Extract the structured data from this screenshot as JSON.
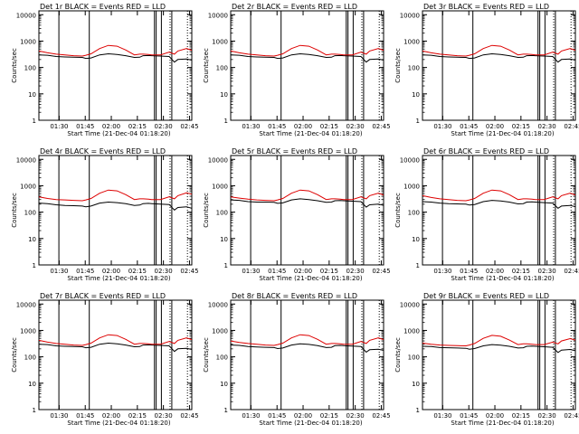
{
  "colors": {
    "events": "#000000",
    "lld": "#dd0000",
    "axes": "#000000",
    "background": "#ffffff"
  },
  "chart_data": [
    {
      "type": "line",
      "title": "Det 1r BLACK = Events RED = LLD",
      "ylabel": "Counts/sec",
      "xlabel": "Start Time (21-Dec-04 01:18:20)",
      "xticklabels": [
        "01:30",
        "01:45",
        "02:00",
        "02:15",
        "02:30",
        "02:45"
      ],
      "yticklabels": [
        "1",
        "10",
        "100",
        "1000",
        "10000"
      ],
      "ylim": [
        1,
        14000
      ],
      "log_y": true,
      "xlim_minutes": [
        0,
        88
      ],
      "x_minutes": [
        0,
        5,
        10,
        15,
        20,
        25,
        27,
        30,
        35,
        40,
        45,
        50,
        55,
        58,
        60,
        63,
        65,
        70,
        75,
        78,
        80,
        85,
        88
      ],
      "series": [
        {
          "name": "Events",
          "values": [
            300,
            290,
            260,
            250,
            245,
            240,
            220,
            230,
            300,
            330,
            310,
            280,
            240,
            245,
            280,
            285,
            280,
            270,
            260,
            160,
            200,
            210,
            190
          ]
        },
        {
          "name": "LLD",
          "values": [
            420,
            360,
            320,
            300,
            280,
            270,
            290,
            330,
            520,
            690,
            640,
            460,
            300,
            320,
            320,
            310,
            300,
            300,
            380,
            320,
            420,
            520,
            450
          ]
        }
      ],
      "vlines_solid": [
        11.5,
        29,
        66.5,
        67.5,
        70.5,
        76.5
      ],
      "vlines_dotted": [
        75.5,
        85.5
      ]
    },
    {
      "type": "line",
      "title": "Det 2r BLACK = Events RED = LLD",
      "ylabel": "Counts/sec",
      "xlabel": "Start Time (21-Dec-04 01:18:20)",
      "xticklabels": [
        "01:30",
        "01:45",
        "02:00",
        "02:15",
        "02:30",
        "02:45"
      ],
      "yticklabels": [
        "1",
        "10",
        "100",
        "1000",
        "10000"
      ],
      "ylim": [
        1,
        14000
      ],
      "log_y": true,
      "xlim_minutes": [
        0,
        88
      ],
      "x_minutes": [
        0,
        5,
        10,
        15,
        20,
        25,
        27,
        30,
        35,
        40,
        45,
        50,
        55,
        58,
        60,
        63,
        65,
        70,
        75,
        78,
        80,
        85,
        88
      ],
      "series": [
        {
          "name": "Events",
          "values": [
            300,
            290,
            260,
            250,
            245,
            240,
            220,
            230,
            300,
            330,
            310,
            280,
            240,
            245,
            280,
            285,
            280,
            270,
            260,
            160,
            200,
            210,
            190
          ]
        },
        {
          "name": "LLD",
          "values": [
            420,
            360,
            320,
            300,
            280,
            270,
            290,
            330,
            520,
            690,
            640,
            460,
            300,
            320,
            320,
            310,
            300,
            300,
            380,
            320,
            420,
            520,
            450
          ]
        }
      ],
      "vlines_solid": [
        11.5,
        29,
        66.5,
        67.5,
        70.5,
        76.5
      ],
      "vlines_dotted": [
        75.5,
        85.5
      ]
    },
    {
      "type": "line",
      "title": "Det 3r BLACK = Events RED = LLD",
      "ylabel": "Counts/sec",
      "xlabel": "Start Time (21-Dec-04 01:18:20)",
      "xticklabels": [
        "01:30",
        "01:45",
        "02:00",
        "02:15",
        "02:30",
        "02:45"
      ],
      "yticklabels": [
        "1",
        "10",
        "100",
        "1000",
        "10000"
      ],
      "ylim": [
        1,
        14000
      ],
      "log_y": true,
      "xlim_minutes": [
        0,
        88
      ],
      "x_minutes": [
        0,
        5,
        10,
        15,
        20,
        25,
        27,
        30,
        35,
        40,
        45,
        50,
        55,
        58,
        60,
        63,
        65,
        70,
        75,
        78,
        80,
        85,
        88
      ],
      "series": [
        {
          "name": "Events",
          "values": [
            300,
            290,
            260,
            250,
            245,
            240,
            220,
            230,
            300,
            330,
            310,
            280,
            240,
            245,
            280,
            285,
            280,
            270,
            260,
            160,
            200,
            210,
            190
          ]
        },
        {
          "name": "LLD",
          "values": [
            420,
            360,
            320,
            300,
            280,
            270,
            290,
            330,
            520,
            690,
            640,
            460,
            300,
            320,
            320,
            310,
            300,
            300,
            380,
            320,
            420,
            520,
            450
          ]
        }
      ],
      "vlines_solid": [
        11.5,
        29,
        66.5,
        67.5,
        70.5,
        76.5
      ],
      "vlines_dotted": [
        75.5,
        85.5
      ]
    },
    {
      "type": "line",
      "title": "Det 4r BLACK = Events RED = LLD",
      "ylabel": "Counts/sec",
      "xlabel": "Start Time (21-Dec-04 01:18:20)",
      "xticklabels": [
        "01:30",
        "01:45",
        "02:00",
        "02:15",
        "02:30",
        "02:45"
      ],
      "yticklabels": [
        "1",
        "10",
        "100",
        "1000",
        "10000"
      ],
      "ylim": [
        1,
        14000
      ],
      "log_y": true,
      "xlim_minutes": [
        0,
        88
      ],
      "x_minutes": [
        0,
        5,
        10,
        15,
        20,
        25,
        27,
        30,
        35,
        40,
        45,
        50,
        55,
        58,
        60,
        63,
        65,
        70,
        75,
        78,
        80,
        85,
        88
      ],
      "series": [
        {
          "name": "Events",
          "values": [
            220,
            210,
            190,
            180,
            175,
            170,
            160,
            170,
            220,
            240,
            230,
            210,
            180,
            185,
            210,
            215,
            210,
            200,
            195,
            120,
            150,
            160,
            140
          ]
        },
        {
          "name": "LLD",
          "values": [
            380,
            330,
            300,
            290,
            280,
            270,
            290,
            330,
            520,
            690,
            640,
            460,
            300,
            320,
            320,
            310,
            300,
            300,
            380,
            320,
            420,
            540,
            480
          ]
        }
      ],
      "vlines_solid": [
        11.5,
        29,
        66.5,
        67.5,
        70.5,
        76.5
      ],
      "vlines_dotted": [
        75.5,
        85.5
      ]
    },
    {
      "type": "line",
      "title": "Det 5r BLACK = Events RED = LLD",
      "ylabel": "Counts/sec",
      "xlabel": "Start Time (21-Dec-04 01:18:20)",
      "xticklabels": [
        "01:30",
        "01:45",
        "02:00",
        "02:15",
        "02:30",
        "02:45"
      ],
      "yticklabels": [
        "1",
        "10",
        "100",
        "1000",
        "10000"
      ],
      "ylim": [
        1,
        14000
      ],
      "log_y": true,
      "xlim_minutes": [
        0,
        88
      ],
      "x_minutes": [
        0,
        5,
        10,
        15,
        20,
        25,
        27,
        30,
        35,
        40,
        45,
        50,
        55,
        58,
        60,
        63,
        65,
        70,
        75,
        78,
        80,
        85,
        88
      ],
      "series": [
        {
          "name": "Events",
          "values": [
            290,
            280,
            250,
            240,
            240,
            235,
            215,
            225,
            290,
            320,
            300,
            270,
            235,
            240,
            270,
            275,
            270,
            260,
            250,
            155,
            190,
            200,
            180
          ]
        },
        {
          "name": "LLD",
          "values": [
            380,
            340,
            310,
            290,
            280,
            270,
            290,
            330,
            520,
            690,
            640,
            460,
            300,
            320,
            320,
            310,
            300,
            300,
            380,
            320,
            420,
            520,
            450
          ]
        }
      ],
      "vlines_solid": [
        11.5,
        29,
        66.5,
        67.5,
        70.5,
        76.5
      ],
      "vlines_dotted": [
        75.5,
        85.5
      ]
    },
    {
      "type": "line",
      "title": "Det 6r BLACK = Events RED = LLD",
      "ylabel": "Counts/sec",
      "xlabel": "Start Time (21-Dec-04 01:18:20)",
      "xticklabels": [
        "01:30",
        "01:45",
        "02:00",
        "02:15",
        "02:30",
        "02:45"
      ],
      "yticklabels": [
        "1",
        "10",
        "100",
        "1000",
        "10000"
      ],
      "ylim": [
        1,
        14000
      ],
      "log_y": true,
      "xlim_minutes": [
        0,
        88
      ],
      "x_minutes": [
        0,
        5,
        10,
        15,
        20,
        25,
        27,
        30,
        35,
        40,
        45,
        50,
        55,
        58,
        60,
        63,
        65,
        70,
        75,
        78,
        80,
        85,
        88
      ],
      "series": [
        {
          "name": "Events",
          "values": [
            250,
            240,
            220,
            210,
            205,
            200,
            185,
            195,
            250,
            280,
            265,
            240,
            205,
            210,
            240,
            245,
            240,
            230,
            220,
            140,
            170,
            180,
            160
          ]
        },
        {
          "name": "LLD",
          "values": [
            420,
            360,
            320,
            300,
            280,
            270,
            290,
            330,
            520,
            690,
            640,
            460,
            300,
            320,
            320,
            310,
            300,
            300,
            380,
            320,
            420,
            520,
            450
          ]
        }
      ],
      "vlines_solid": [
        11.5,
        29,
        66.5,
        67.5,
        70.5,
        76.5
      ],
      "vlines_dotted": [
        75.5,
        85.5
      ]
    },
    {
      "type": "line",
      "title": "Det 7r BLACK = Events RED = LLD",
      "ylabel": "Counts/sec",
      "xlabel": "Start Time (21-Dec-04 01:18:20)",
      "xticklabels": [
        "01:30",
        "01:45",
        "02:00",
        "02:15",
        "02:30",
        "02:45"
      ],
      "yticklabels": [
        "1",
        "10",
        "100",
        "1000",
        "10000"
      ],
      "ylim": [
        1,
        14000
      ],
      "log_y": true,
      "xlim_minutes": [
        0,
        88
      ],
      "x_minutes": [
        0,
        5,
        10,
        15,
        20,
        25,
        27,
        30,
        35,
        40,
        45,
        50,
        55,
        58,
        60,
        63,
        65,
        70,
        75,
        78,
        80,
        85,
        88
      ],
      "series": [
        {
          "name": "Events",
          "values": [
            300,
            290,
            260,
            250,
            245,
            240,
            220,
            230,
            300,
            330,
            310,
            280,
            240,
            245,
            280,
            285,
            280,
            270,
            260,
            160,
            200,
            210,
            190
          ]
        },
        {
          "name": "LLD",
          "values": [
            420,
            360,
            320,
            300,
            280,
            270,
            290,
            330,
            520,
            690,
            640,
            460,
            300,
            320,
            320,
            310,
            300,
            300,
            380,
            320,
            420,
            520,
            450
          ]
        }
      ],
      "vlines_solid": [
        11.5,
        29,
        66.5,
        67.5,
        70.5,
        76.5
      ],
      "vlines_dotted": [
        75.5,
        85.5
      ]
    },
    {
      "type": "line",
      "title": "Det 8r BLACK = Events RED = LLD",
      "ylabel": "Counts/sec",
      "xlabel": "Start Time (21-Dec-04 01:18:20)",
      "xticklabels": [
        "01:30",
        "01:45",
        "02:00",
        "02:15",
        "02:30",
        "02:45"
      ],
      "yticklabels": [
        "1",
        "10",
        "100",
        "1000",
        "10000"
      ],
      "ylim": [
        1,
        14000
      ],
      "log_y": true,
      "xlim_minutes": [
        0,
        88
      ],
      "x_minutes": [
        0,
        5,
        10,
        15,
        20,
        25,
        27,
        30,
        35,
        40,
        45,
        50,
        55,
        58,
        60,
        63,
        65,
        70,
        75,
        78,
        80,
        85,
        88
      ],
      "series": [
        {
          "name": "Events",
          "values": [
            280,
            270,
            245,
            235,
            230,
            225,
            205,
            215,
            280,
            310,
            295,
            265,
            225,
            230,
            265,
            270,
            265,
            255,
            245,
            150,
            185,
            195,
            175
          ]
        },
        {
          "name": "LLD",
          "values": [
            400,
            350,
            320,
            300,
            280,
            270,
            290,
            330,
            520,
            690,
            640,
            460,
            300,
            320,
            320,
            310,
            300,
            300,
            380,
            320,
            420,
            520,
            450
          ]
        }
      ],
      "vlines_solid": [
        11.5,
        29,
        66.5,
        67.5,
        70.5,
        76.5
      ],
      "vlines_dotted": [
        75.5,
        85.5
      ]
    },
    {
      "type": "line",
      "title": "Det 9r BLACK = Events RED = LLD",
      "ylabel": "Counts/sec",
      "xlabel": "Start Time (21-Dec-04 01:18:20)",
      "xticklabels": [
        "01:30",
        "01:45",
        "02:00",
        "02:15",
        "02:30",
        "02:45"
      ],
      "yticklabels": [
        "1",
        "10",
        "100",
        "1000",
        "10000"
      ],
      "ylim": [
        1,
        14000
      ],
      "log_y": true,
      "xlim_minutes": [
        0,
        88
      ],
      "x_minutes": [
        0,
        5,
        10,
        15,
        20,
        25,
        27,
        30,
        35,
        40,
        45,
        50,
        55,
        58,
        60,
        63,
        65,
        70,
        75,
        78,
        80,
        85,
        88
      ],
      "series": [
        {
          "name": "Events",
          "values": [
            250,
            245,
            225,
            220,
            215,
            210,
            195,
            205,
            260,
            290,
            275,
            250,
            215,
            220,
            250,
            255,
            250,
            240,
            230,
            145,
            180,
            190,
            170
          ]
        },
        {
          "name": "LLD",
          "values": [
            330,
            300,
            280,
            270,
            265,
            260,
            280,
            320,
            500,
            650,
            600,
            430,
            290,
            310,
            310,
            300,
            290,
            290,
            360,
            310,
            400,
            490,
            430
          ]
        }
      ],
      "vlines_solid": [
        11.5,
        29,
        66.5,
        67.5,
        70.5,
        76.5
      ],
      "vlines_dotted": [
        75.5,
        85.5
      ]
    }
  ]
}
